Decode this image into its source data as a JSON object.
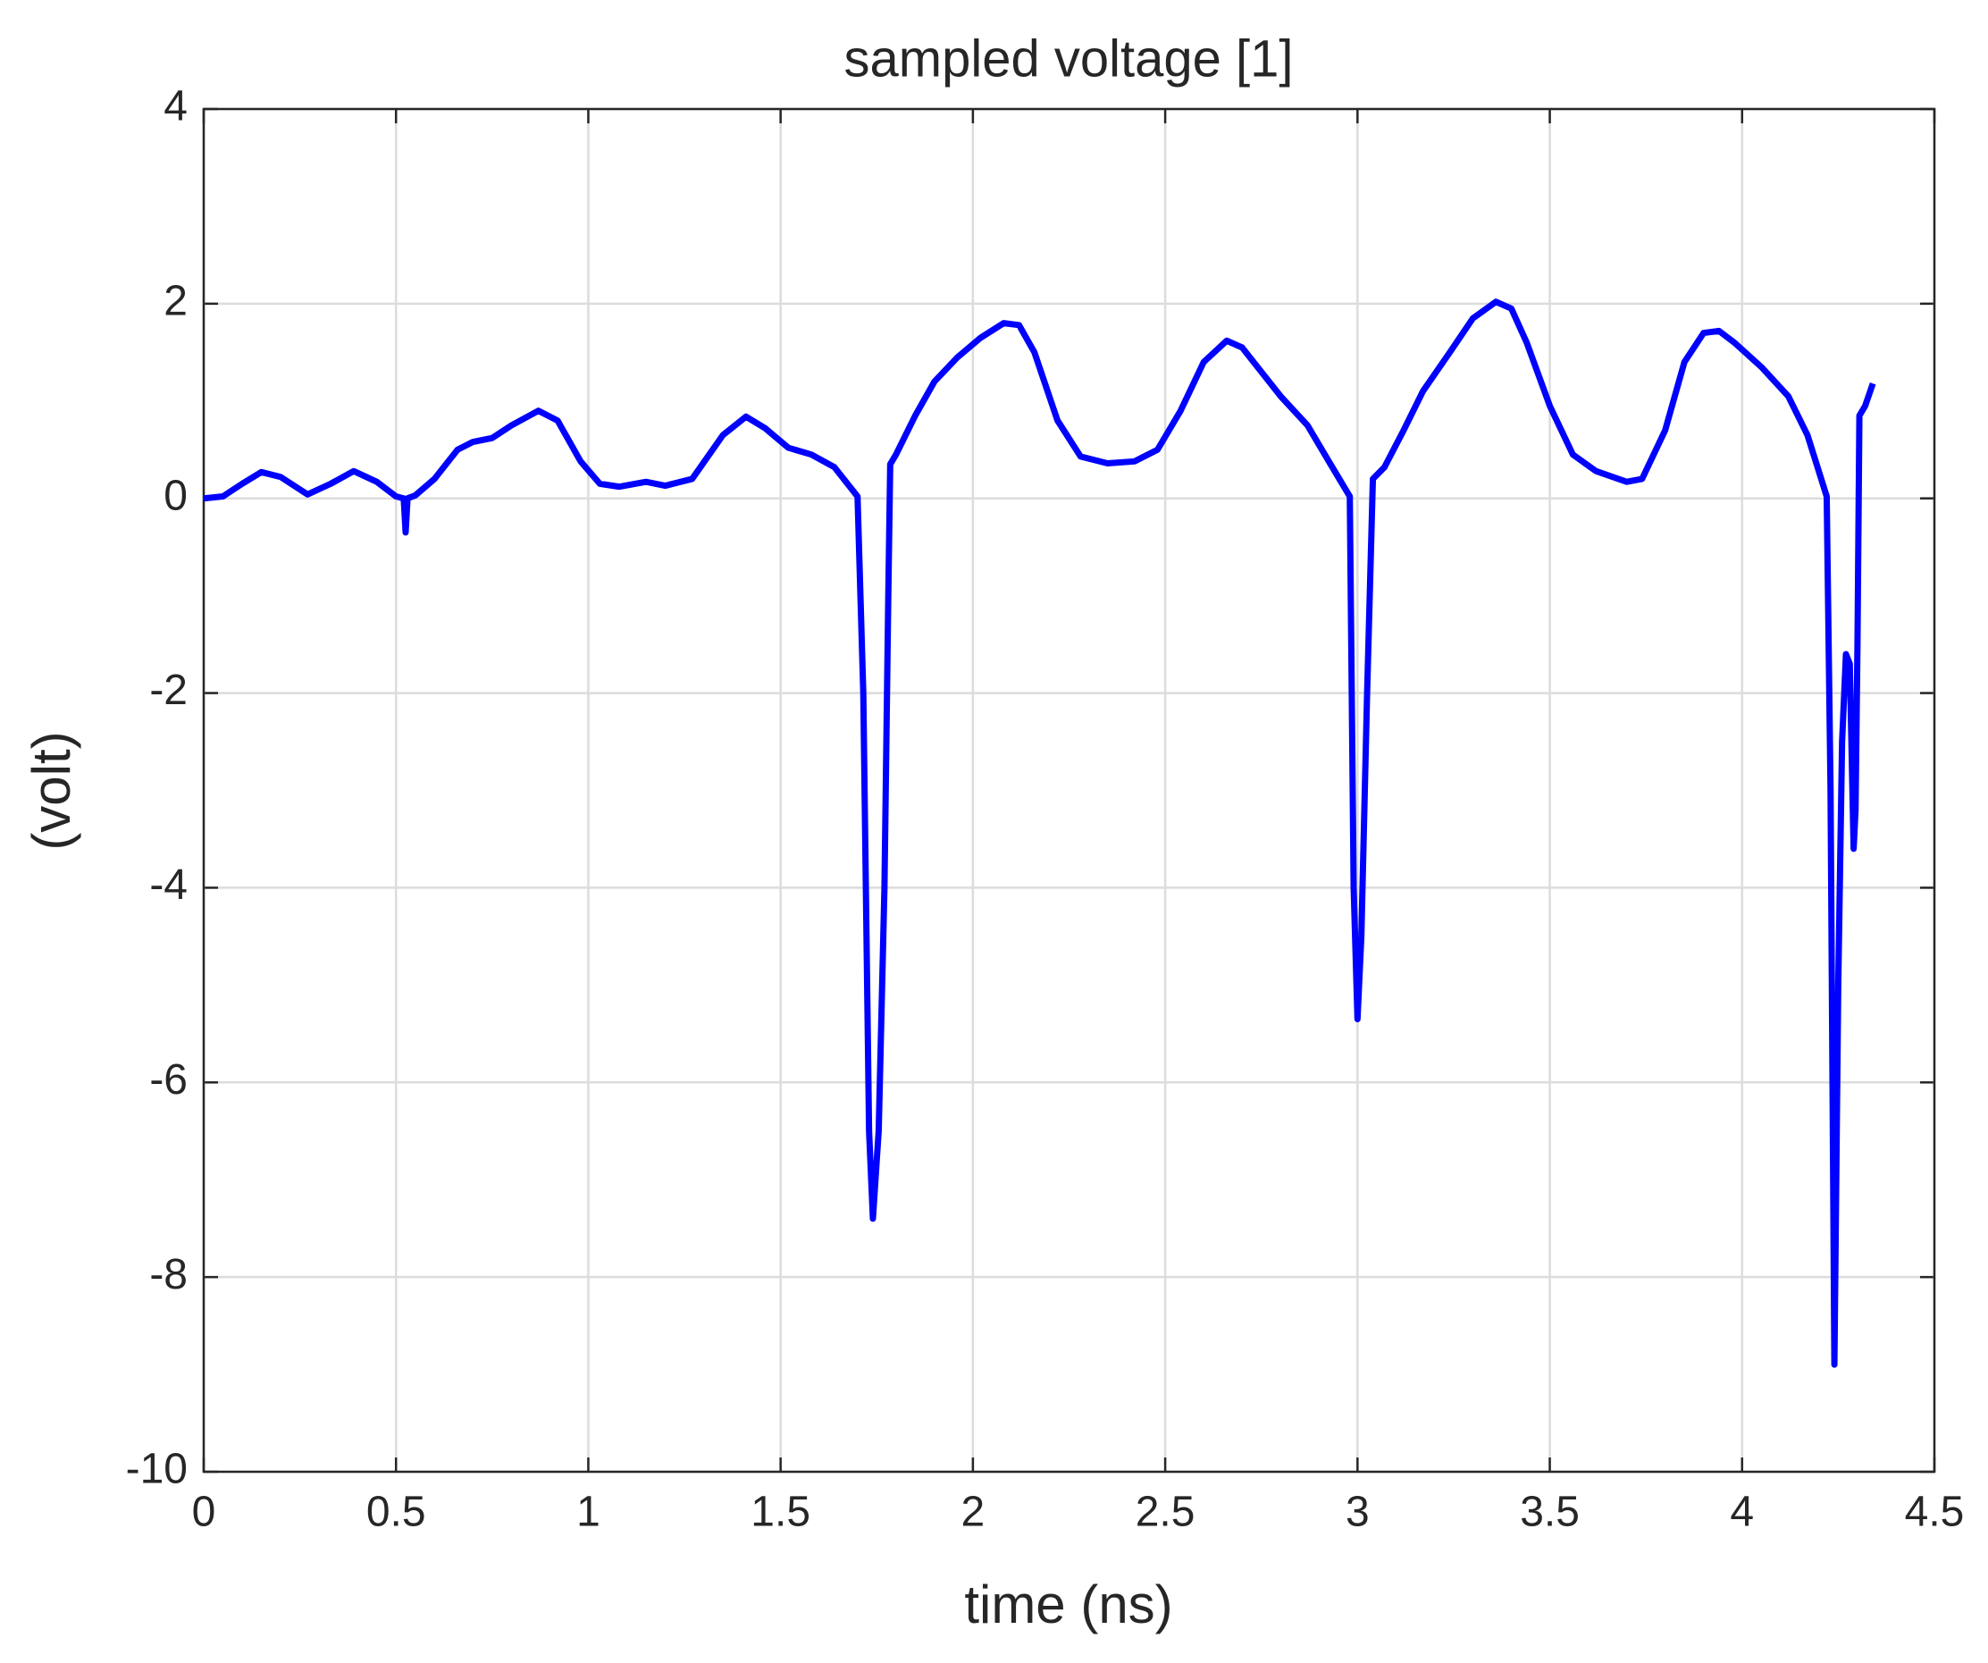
{
  "chart_data": {
    "type": "line",
    "title": "sampled voltage [1]",
    "xlabel": "time (ns)",
    "ylabel": "(volt)",
    "xlim": [
      0,
      4.5
    ],
    "ylim": [
      -10,
      4
    ],
    "xticks": [
      0,
      0.5,
      1,
      1.5,
      2,
      2.5,
      3,
      3.5,
      4,
      4.5
    ],
    "yticks": [
      -10,
      -8,
      -6,
      -4,
      -2,
      0,
      2,
      4
    ],
    "grid": true,
    "series": [
      {
        "color": "#0000ff",
        "x": [
          0,
          0.05,
          0.1,
          0.15,
          0.2,
          0.27,
          0.33,
          0.39,
          0.45,
          0.5,
          0.52,
          0.525,
          0.53,
          0.55,
          0.6,
          0.66,
          0.7,
          0.75,
          0.8,
          0.87,
          0.92,
          0.98,
          1.03,
          1.08,
          1.15,
          1.2,
          1.27,
          1.35,
          1.41,
          1.46,
          1.52,
          1.58,
          1.64,
          1.7,
          1.715,
          1.73,
          1.74,
          1.755,
          1.77,
          1.78,
          1.785,
          1.8,
          1.85,
          1.9,
          1.96,
          2.02,
          2.08,
          2.12,
          2.16,
          2.22,
          2.28,
          2.35,
          2.42,
          2.48,
          2.54,
          2.6,
          2.66,
          2.7,
          2.75,
          2.8,
          2.87,
          2.93,
          2.98,
          2.99,
          3.0,
          3.01,
          3.025,
          3.04,
          3.07,
          3.12,
          3.17,
          3.24,
          3.3,
          3.36,
          3.4,
          3.44,
          3.5,
          3.56,
          3.62,
          3.7,
          3.74,
          3.8,
          3.85,
          3.9,
          3.94,
          3.98,
          4.05,
          4.12,
          4.17,
          4.22,
          4.23,
          4.24,
          4.25,
          4.26,
          4.27,
          4.28,
          4.29,
          4.295,
          4.3,
          4.305,
          4.32,
          4.34
        ],
        "values": [
          0,
          0.02,
          0.15,
          0.27,
          0.22,
          0.04,
          0.15,
          0.28,
          0.17,
          0.02,
          0,
          -0.35,
          0,
          0.03,
          0.2,
          0.5,
          0.58,
          0.62,
          0.75,
          0.9,
          0.8,
          0.38,
          0.15,
          0.12,
          0.17,
          0.13,
          0.2,
          0.65,
          0.84,
          0.72,
          0.52,
          0.45,
          0.32,
          0.02,
          -2,
          -6.5,
          -7.4,
          -6.5,
          -4,
          -1,
          0.35,
          0.45,
          0.85,
          1.2,
          1.45,
          1.65,
          1.8,
          1.78,
          1.5,
          0.8,
          0.43,
          0.36,
          0.38,
          0.5,
          0.9,
          1.4,
          1.62,
          1.55,
          1.3,
          1.05,
          0.75,
          0.35,
          0.02,
          -4,
          -5.35,
          -4.5,
          -2,
          0.2,
          0.32,
          0.7,
          1.1,
          1.5,
          1.85,
          2.02,
          1.95,
          1.6,
          0.95,
          0.45,
          0.28,
          0.17,
          0.2,
          0.7,
          1.4,
          1.7,
          1.72,
          1.6,
          1.35,
          1.05,
          0.65,
          0.02,
          -3,
          -8.9,
          -5,
          -2.5,
          -1.6,
          -1.7,
          -3.6,
          -3.2,
          -1.5,
          0.85,
          0.95,
          1.18
        ]
      }
    ]
  }
}
